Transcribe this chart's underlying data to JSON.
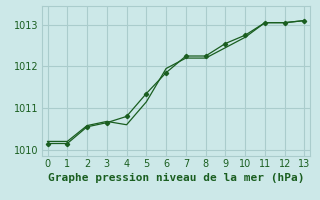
{
  "title": "Graphe pression niveau de la mer (hPa)",
  "background_color": "#cce8e8",
  "grid_color": "#aacccc",
  "line_color": "#1a5e20",
  "series1": {
    "x": [
      0,
      1,
      2,
      3,
      4,
      5,
      6,
      7,
      8,
      9,
      10,
      11,
      12,
      13
    ],
    "y": [
      1010.15,
      1010.15,
      1010.55,
      1010.65,
      1010.8,
      1011.35,
      1011.85,
      1012.25,
      1012.25,
      1012.55,
      1012.75,
      1013.05,
      1013.05,
      1013.1
    ]
  },
  "series2": {
    "x": [
      0,
      1,
      2,
      3,
      4,
      5,
      6,
      7,
      8,
      9,
      10,
      11,
      12,
      13
    ],
    "y": [
      1010.2,
      1010.2,
      1010.58,
      1010.68,
      1010.6,
      1011.15,
      1011.95,
      1012.2,
      1012.2,
      1012.45,
      1012.7,
      1013.05,
      1013.05,
      1013.1
    ]
  },
  "xlim": [
    -0.3,
    13.3
  ],
  "ylim": [
    1009.85,
    1013.45
  ],
  "yticks": [
    1010,
    1011,
    1012,
    1013
  ],
  "xticks": [
    0,
    1,
    2,
    3,
    4,
    5,
    6,
    7,
    8,
    9,
    10,
    11,
    12,
    13
  ],
  "title_fontsize": 8,
  "tick_fontsize": 7
}
